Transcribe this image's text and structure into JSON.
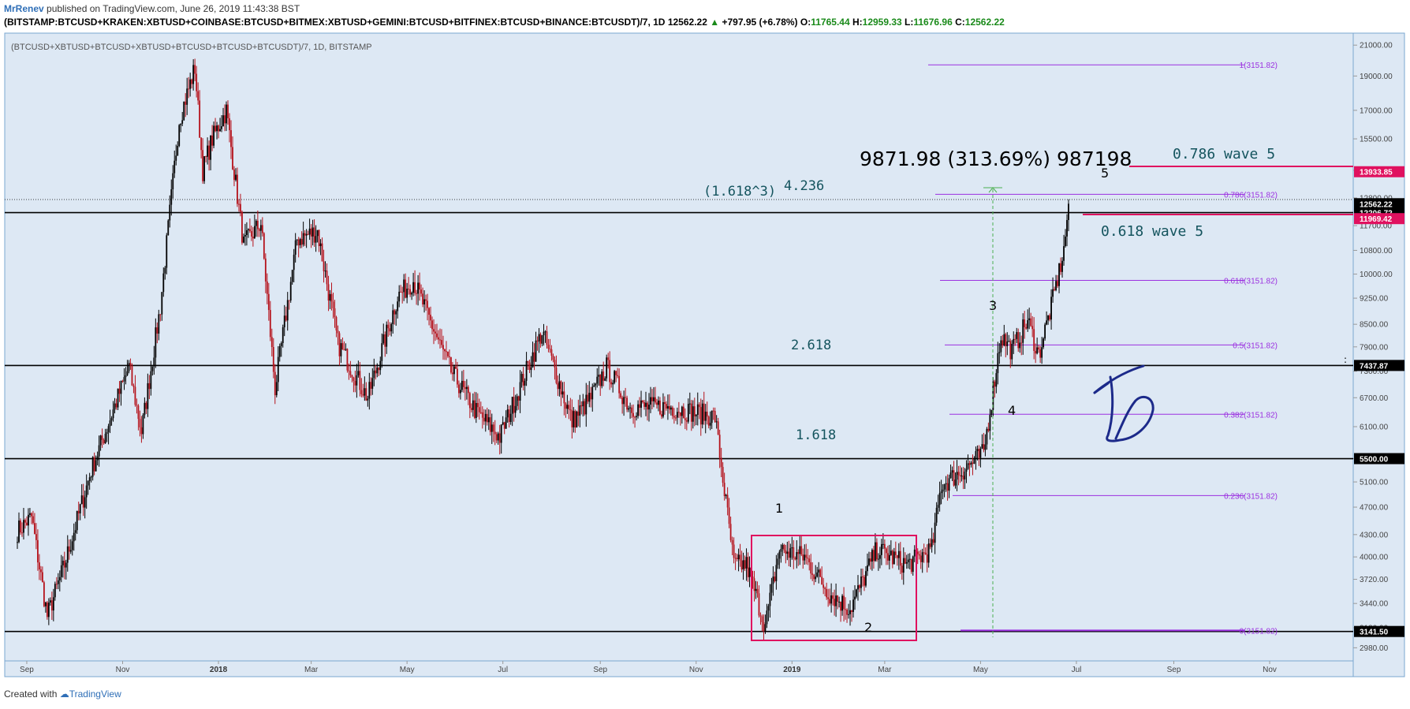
{
  "header": {
    "author": "MrRenev",
    "published": "published on TradingView.com, June 26, 2019 11:43:38 BST",
    "symbol": "(BITSTAMP:BTCUSD+KRAKEN:XBTUSD+COINBASE:BTCUSD+BITMEX:XBTUSD+GEMINI:BTCUSD+BITFINEX:BTCUSD+BINANCE:BTCUSDT)/7, 1D",
    "last": "12562.22",
    "change": "+797.95 (+6.78%)",
    "open_label": "O:",
    "open": "11765.44",
    "high_label": "H:",
    "high": "12959.33",
    "low_label": "L:",
    "low": "11676.96",
    "close_label": "C:",
    "close": "12562.22"
  },
  "footer": {
    "created_with": "Created with",
    "brand": "TradingView"
  },
  "chart_data": {
    "type": "candlestick",
    "inner_title": "(BTCUSD+XBTUSD+BTCUSD+XBTUSD+BTCUSD+BTCUSD+BTCUSDT)/7, 1D, BITSTAMP",
    "x_ticks": [
      "Sep",
      "Nov",
      "2018",
      "Mar",
      "May",
      "Jul",
      "Sep",
      "Nov",
      "2019",
      "Mar",
      "May",
      "Jul",
      "Sep",
      "Nov"
    ],
    "y_ticks": [
      "21000.00",
      "19000.00",
      "17000.00",
      "15500.00",
      "14000.00",
      "12800.00",
      "11700.00",
      "10800.00",
      "10000.00",
      "9250.00",
      "8500.00",
      "7900.00",
      "7300.00",
      "6700.00",
      "6100.00",
      "5500.00",
      "5100.00",
      "4700.00",
      "4300.00",
      "4000.00",
      "3720.00",
      "3440.00",
      "3180.00",
      "2980.00"
    ],
    "y_scale": "log",
    "y_range": [
      2900,
      21500
    ],
    "colors": {
      "up": "#000000",
      "down": "#b5121b",
      "background": "#dde8f4",
      "fib": "#9b30e0",
      "accent": "#e0115f"
    },
    "price_labels": [
      {
        "value": 13933.85,
        "text": "13933.85",
        "bg": "#e0115f"
      },
      {
        "value": 12562.22,
        "text": "12562.22",
        "bg": "#000000"
      },
      {
        "value": 12206.72,
        "text": "12206.72",
        "bg": "#000000"
      },
      {
        "value": 11969.42,
        "text": "11969.42",
        "bg": "#e0115f"
      },
      {
        "value": 7437.87,
        "text": "7437.87",
        "bg": "#000000"
      },
      {
        "value": 5500.0,
        "text": "5500.00",
        "bg": "#000000"
      },
      {
        "value": 3141.5,
        "text": "3141.50",
        "bg": "#000000"
      }
    ],
    "fib_levels": [
      {
        "ratio": 1,
        "label": "1(3151.82)",
        "value": 19700
      },
      {
        "ratio": 0.786,
        "label": "0.786(3151.82)",
        "value": 12950
      },
      {
        "ratio": 0.618,
        "label": "0.618(3151.82)",
        "value": 9800
      },
      {
        "ratio": 0.5,
        "label": "0.5(3151.82)",
        "value": 7950
      },
      {
        "ratio": 0.382,
        "label": "0.382(3151.82)",
        "value": 6350
      },
      {
        "ratio": 0.236,
        "label": "0.236(3151.82)",
        "value": 4880
      },
      {
        "ratio": 0,
        "label": "0(3151.82)",
        "value": 3151.82
      }
    ],
    "horizontal_lines": [
      12206.72,
      7437.87,
      5500.0,
      3141.5
    ],
    "annotations": {
      "measure": "9871.98 (313.69%) 987198",
      "wave5_0786": "0.786 wave 5",
      "wave5_0618": "0.618 wave 5",
      "ext_4236_a": "(1.618^3)",
      "ext_4236_b": "4.236",
      "ext_2618": "2.618",
      "ext_1618": "1.618",
      "wave_1": "1",
      "wave_2": "2",
      "wave_3": "3",
      "wave_4": "4",
      "wave_5": "5",
      "colon": ":"
    },
    "series_anchors": [
      [
        "2017-08-26",
        4350
      ],
      [
        "2017-09-04",
        4550
      ],
      [
        "2017-09-14",
        3300
      ],
      [
        "2017-09-25",
        3900
      ],
      [
        "2017-10-12",
        5300
      ],
      [
        "2017-10-21",
        6000
      ],
      [
        "2017-11-05",
        7400
      ],
      [
        "2017-11-13",
        6000
      ],
      [
        "2017-11-25",
        9000
      ],
      [
        "2017-12-07",
        16500
      ],
      [
        "2017-12-17",
        19500
      ],
      [
        "2017-12-22",
        14000
      ],
      [
        "2017-12-28",
        15500
      ],
      [
        "2018-01-06",
        17000
      ],
      [
        "2018-01-17",
        11000
      ],
      [
        "2018-01-28",
        11800
      ],
      [
        "2018-02-06",
        6900
      ],
      [
        "2018-02-20",
        11200
      ],
      [
        "2018-03-05",
        11500
      ],
      [
        "2018-03-18",
        8000
      ],
      [
        "2018-04-06",
        6700
      ],
      [
        "2018-04-25",
        9300
      ],
      [
        "2018-05-05",
        9800
      ],
      [
        "2018-05-29",
        7300
      ],
      [
        "2018-06-14",
        6400
      ],
      [
        "2018-06-29",
        5900
      ],
      [
        "2018-07-26",
        8300
      ],
      [
        "2018-08-14",
        6200
      ],
      [
        "2018-08-26",
        6700
      ],
      [
        "2018-09-05",
        7400
      ],
      [
        "2018-09-20",
        6500
      ],
      [
        "2018-10-15",
        6500
      ],
      [
        "2018-11-13",
        6300
      ],
      [
        "2018-11-25",
        3900
      ],
      [
        "2018-12-03",
        3900
      ],
      [
        "2018-12-15",
        3200
      ],
      [
        "2018-12-24",
        4100
      ],
      [
        "2019-01-09",
        4000
      ],
      [
        "2019-01-25",
        3550
      ],
      [
        "2019-02-07",
        3380
      ],
      [
        "2019-02-24",
        4100
      ],
      [
        "2019-03-15",
        3900
      ],
      [
        "2019-03-31",
        4100
      ],
      [
        "2019-04-06",
        5050
      ],
      [
        "2019-04-20",
        5300
      ],
      [
        "2019-05-03",
        5600
      ],
      [
        "2019-05-14",
        8200
      ],
      [
        "2019-05-21",
        7800
      ],
      [
        "2019-05-31",
        8600
      ],
      [
        "2019-06-07",
        7700
      ],
      [
        "2019-06-16",
        9200
      ],
      [
        "2019-06-23",
        10800
      ],
      [
        "2019-06-26",
        12562
      ]
    ]
  }
}
